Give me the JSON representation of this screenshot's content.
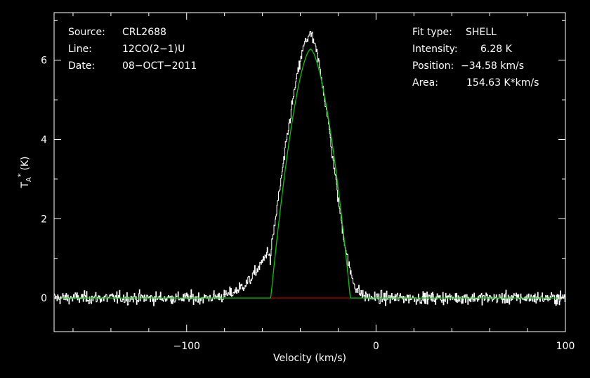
{
  "chart_data": {
    "type": "line",
    "xlabel": "Velocity (km/s)",
    "ylabel_main": "T",
    "ylabel_sub": "A",
    "ylabel_sup": "*",
    "ylabel_unit": "(K)",
    "xlim": [
      -170,
      100
    ],
    "ylim": [
      -0.85,
      7.2
    ],
    "x_ticks": [
      {
        "value": -100,
        "label": "−100"
      },
      {
        "value": 0,
        "label": "0"
      },
      {
        "value": 100,
        "label": "100"
      }
    ],
    "y_ticks": [
      {
        "value": 0,
        "label": "0"
      },
      {
        "value": 2,
        "label": "2"
      },
      {
        "value": 4,
        "label": "4"
      },
      {
        "value": 6,
        "label": "6"
      }
    ],
    "info_left": [
      {
        "label": "Source:",
        "value": "CRL2688"
      },
      {
        "label": "Line:",
        "value": "12CO(2−1)U"
      },
      {
        "label": "Date:",
        "value": "08−OCT−2011"
      }
    ],
    "info_right": [
      {
        "label": "Fit type:",
        "value": "SHELL"
      },
      {
        "label": "Intensity:",
        "value": "6.28 K"
      },
      {
        "label": "Position:",
        "value": "−34.58 km/s"
      },
      {
        "label": "Area:",
        "value": "154.63 K*km/s"
      }
    ],
    "fit": {
      "type": "SHELL",
      "center": -34.58,
      "peak": 6.28,
      "area": 154.63,
      "half_width": 21.0,
      "horn": 0.02
    },
    "baseline_range": [
      -55.6,
      -13.6
    ],
    "series": [
      {
        "kind": "spectrum",
        "x": [
          -170,
          -150,
          -130,
          -110,
          -90,
          -80,
          -75,
          -72,
          -69,
          -66,
          -63,
          -61,
          -59,
          -58,
          -57,
          -56,
          -55,
          -52,
          -49,
          -46,
          -43,
          -40,
          -38,
          -36,
          -35,
          -34,
          -33,
          -31,
          -28,
          -25,
          -22,
          -19,
          -16,
          -14,
          -12,
          -10,
          -8,
          -5,
          0,
          25,
          50,
          75,
          100
        ],
        "y": [
          0,
          0,
          0,
          0,
          0,
          0.05,
          0.15,
          0.25,
          0.35,
          0.5,
          0.7,
          0.85,
          1.0,
          1.15,
          1.2,
          0.9,
          1.4,
          2.4,
          3.4,
          4.4,
          5.3,
          6.0,
          6.4,
          6.6,
          6.65,
          6.6,
          6.45,
          6.1,
          5.3,
          4.3,
          3.2,
          2.1,
          1.2,
          0.7,
          0.4,
          0.2,
          0.1,
          0.03,
          0,
          0,
          0,
          0,
          0
        ],
        "noise_rms": 0.11
      }
    ],
    "colors": {
      "spectrum": "#ffffff",
      "fit": "#00c800",
      "baseline": "#c80000",
      "frame": "#ffffff"
    }
  }
}
